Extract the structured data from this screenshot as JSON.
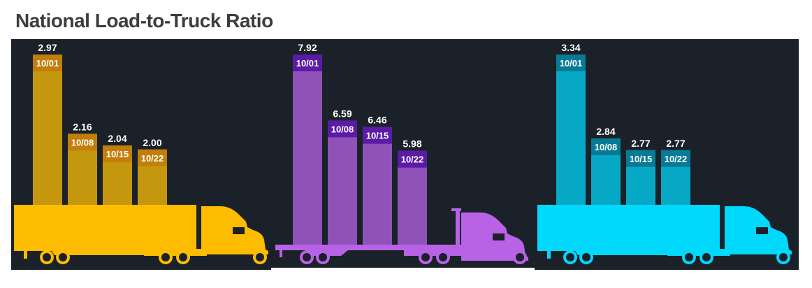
{
  "title": "National Load-to-Truck Ratio",
  "chart_data": {
    "type": "bar",
    "title": "National Load-to-Truck Ratio",
    "categories": [
      "10/01",
      "10/08",
      "10/15",
      "10/22"
    ],
    "series": [
      {
        "values": [
          2.97,
          2.16,
          2.04,
          2.0
        ],
        "truck": "van",
        "colors": {
          "truck": "#fdbc00",
          "bar": "#c4970e",
          "band": "#c27e0a"
        }
      },
      {
        "values": [
          7.92,
          6.59,
          6.46,
          5.98
        ],
        "truck": "flatbed",
        "colors": {
          "truck": "#b862e6",
          "bar": "#8f52b8",
          "band": "#5c1aa6"
        }
      },
      {
        "values": [
          3.34,
          2.84,
          2.77,
          2.77
        ],
        "truck": "van",
        "colors": {
          "truck": "#00d8fc",
          "bar": "#07a8c6",
          "band": "#077b96"
        }
      }
    ],
    "data_labels": true,
    "background": "#1b2129"
  }
}
